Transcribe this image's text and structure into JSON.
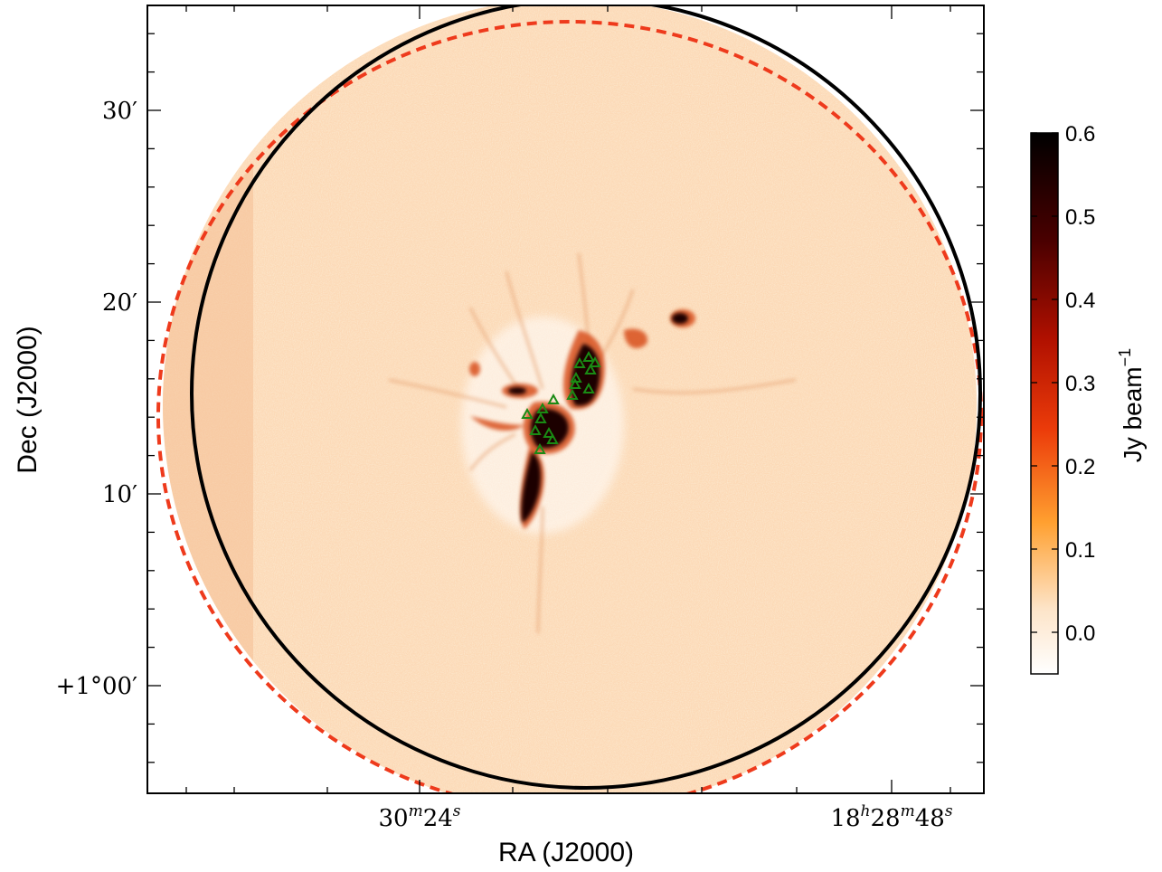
{
  "figure": {
    "x_axis_label": "RA (J2000)",
    "y_axis_label": "Dec (J2000)",
    "x_ticks": [
      {
        "base": "30",
        "sup1": "m",
        "mid": "24",
        "sup2": "s"
      },
      {
        "base": "18",
        "sup1": "h",
        "mid": "28",
        "sup2": "m",
        "end": "48",
        "sup3": "s"
      }
    ],
    "y_ticks": [
      "30′",
      "20′",
      "10′",
      "+1°00′"
    ],
    "colorbar": {
      "label_main": "Jy beam",
      "label_sup": "−1",
      "ticks": [
        "0.6",
        "0.5",
        "0.4",
        "0.3",
        "0.2",
        "0.1",
        "0.0"
      ],
      "range": [
        -0.05,
        0.6
      ],
      "colormap": [
        "#ffffff",
        "#fde0c0",
        "#ff8a10",
        "#e0300a",
        "#7a0000",
        "#000000"
      ]
    },
    "overlays": {
      "solid_circle_color": "#000000",
      "dashed_circle_color": "#ee3a1c",
      "marker_color": "#1a8a14",
      "marker_shape": "triangle"
    }
  }
}
